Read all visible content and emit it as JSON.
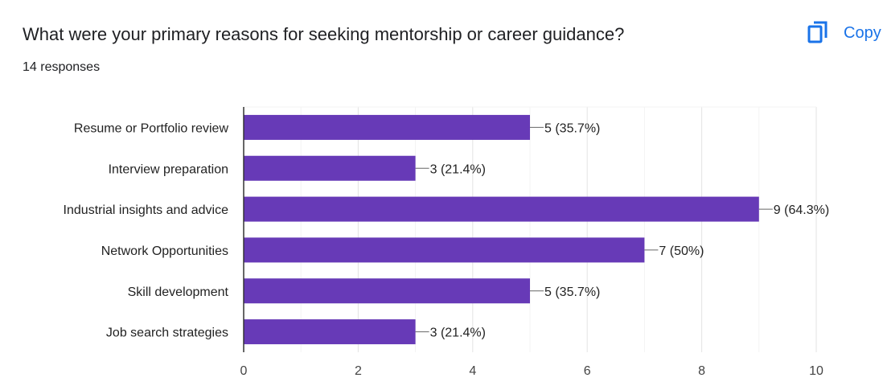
{
  "header": {
    "title": "What were your primary reasons for seeking mentorship or career guidance?",
    "subtitle": "14 responses",
    "copy_label": "Copy",
    "copy_icon": "copy-icon"
  },
  "colors": {
    "bar": "#673ab7",
    "accent": "#1a73e8"
  },
  "chart_data": {
    "type": "bar",
    "orientation": "horizontal",
    "categories": [
      "Resume or Portfolio review",
      "Interview preparation",
      "Industrial insights and advice",
      "Network Opportunities",
      "Skill development",
      "Job search strategies"
    ],
    "values": [
      5,
      3,
      9,
      7,
      5,
      3
    ],
    "value_labels": [
      "5 (35.7%)",
      "3 (21.4%)",
      "9 (64.3%)",
      "7 (50%)",
      "5 (35.7%)",
      "3 (21.4%)"
    ],
    "xlim": [
      0,
      10
    ],
    "xticks": [
      0,
      2,
      4,
      6,
      8,
      10
    ],
    "grid": true,
    "legend": "none"
  }
}
